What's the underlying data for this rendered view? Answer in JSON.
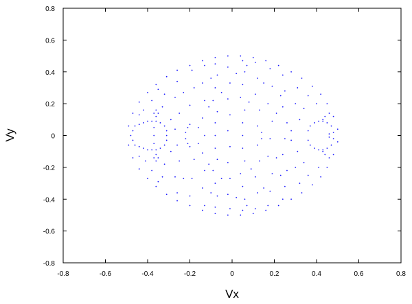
{
  "chart_data": {
    "type": "scatter",
    "xlabel": "Vx",
    "ylabel": "Vy",
    "xlim": [
      -0.8,
      0.8
    ],
    "ylim": [
      -0.8,
      0.8
    ],
    "xticks": [
      -0.8,
      -0.6,
      -0.4,
      -0.2,
      0,
      0.2,
      0.4,
      0.6,
      0.8
    ],
    "yticks": [
      -0.8,
      -0.6,
      -0.4,
      -0.2,
      0,
      0.2,
      0.4,
      0.6,
      0.8
    ],
    "xtick_labels": [
      "-0.8",
      "-0.6",
      "-0.4",
      "-0.2",
      "0",
      "0.2",
      "0.4",
      "0.6",
      "0.8"
    ],
    "ytick_labels": [
      "-0.8",
      "-0.6",
      "-0.4",
      "-0.2",
      "0",
      "0.2",
      "0.4",
      "0.6",
      "0.8"
    ],
    "grid": false,
    "legend": false,
    "colors": {
      "points": "#1a1aff",
      "axes": "#000000",
      "background": "#ffffff"
    },
    "series": [
      {
        "points": [
          [
            -0.49,
            0.06
          ],
          [
            -0.49,
            -0.06
          ],
          [
            -0.47,
            0.14
          ],
          [
            -0.47,
            -0.14
          ],
          [
            -0.44,
            0.21
          ],
          [
            -0.44,
            -0.21
          ],
          [
            -0.4,
            0.27
          ],
          [
            -0.4,
            -0.27
          ],
          [
            -0.36,
            0.32
          ],
          [
            -0.36,
            -0.32
          ],
          [
            -0.31,
            0.37
          ],
          [
            -0.31,
            -0.37
          ],
          [
            -0.26,
            0.41
          ],
          [
            -0.26,
            -0.41
          ],
          [
            -0.2,
            0.44
          ],
          [
            -0.2,
            -0.44
          ],
          [
            -0.14,
            0.47
          ],
          [
            -0.14,
            -0.47
          ],
          [
            -0.08,
            0.49
          ],
          [
            -0.08,
            -0.49
          ],
          [
            -0.02,
            0.5
          ],
          [
            -0.02,
            -0.5
          ],
          [
            0.04,
            0.5
          ],
          [
            0.04,
            -0.5
          ],
          [
            0.1,
            0.49
          ],
          [
            0.1,
            -0.49
          ],
          [
            0.16,
            0.47
          ],
          [
            0.16,
            -0.47
          ],
          [
            0.22,
            0.44
          ],
          [
            0.22,
            -0.44
          ],
          [
            0.28,
            0.4
          ],
          [
            0.28,
            -0.4
          ],
          [
            0.33,
            0.36
          ],
          [
            0.33,
            -0.36
          ],
          [
            0.38,
            0.31
          ],
          [
            0.38,
            -0.31
          ],
          [
            0.42,
            0.26
          ],
          [
            0.42,
            -0.26
          ],
          [
            0.45,
            0.2
          ],
          [
            0.45,
            -0.2
          ],
          [
            0.48,
            0.12
          ],
          [
            0.48,
            -0.12
          ],
          [
            0.5,
            0.04
          ],
          [
            0.5,
            -0.04
          ],
          [
            -0.48,
            0.0
          ],
          [
            -0.47,
            0.03
          ],
          [
            -0.47,
            -0.03
          ],
          [
            -0.46,
            0.06
          ],
          [
            -0.46,
            -0.06
          ],
          [
            -0.44,
            0.07
          ],
          [
            -0.44,
            -0.07
          ],
          [
            -0.42,
            0.08
          ],
          [
            -0.42,
            -0.08
          ],
          [
            -0.4,
            0.09
          ],
          [
            -0.4,
            -0.09
          ],
          [
            -0.38,
            0.09
          ],
          [
            -0.38,
            -0.09
          ],
          [
            -0.36,
            0.09
          ],
          [
            -0.36,
            -0.09
          ],
          [
            -0.34,
            0.08
          ],
          [
            -0.34,
            -0.08
          ],
          [
            -0.32,
            0.06
          ],
          [
            -0.32,
            -0.06
          ],
          [
            -0.31,
            0.03
          ],
          [
            -0.31,
            -0.03
          ],
          [
            -0.31,
            0.0
          ],
          [
            -0.36,
            0.12
          ],
          [
            -0.35,
            0.14
          ],
          [
            -0.37,
            0.14
          ],
          [
            -0.36,
            0.16
          ],
          [
            -0.36,
            -0.12
          ],
          [
            -0.35,
            -0.14
          ],
          [
            -0.37,
            -0.14
          ],
          [
            -0.36,
            -0.16
          ],
          [
            -0.37,
            0.05
          ],
          [
            -0.37,
            -0.05
          ],
          [
            -0.37,
            0.0
          ],
          [
            -0.22,
            0.02
          ],
          [
            -0.21,
            0.05
          ],
          [
            -0.21,
            -0.05
          ],
          [
            -0.2,
            0.07
          ],
          [
            -0.2,
            -0.07
          ],
          [
            -0.22,
            -0.02
          ],
          [
            0.36,
            0.03
          ],
          [
            0.37,
            0.06
          ],
          [
            0.37,
            -0.06
          ],
          [
            0.39,
            0.08
          ],
          [
            0.39,
            -0.08
          ],
          [
            0.41,
            0.09
          ],
          [
            0.41,
            -0.09
          ],
          [
            0.43,
            0.09
          ],
          [
            0.43,
            -0.09
          ],
          [
            0.45,
            0.08
          ],
          [
            0.45,
            -0.08
          ],
          [
            0.47,
            0.06
          ],
          [
            0.47,
            -0.06
          ],
          [
            0.48,
            0.02
          ],
          [
            0.48,
            -0.02
          ],
          [
            0.36,
            -0.03
          ],
          [
            0.43,
            0.1
          ],
          [
            0.44,
            0.12
          ],
          [
            0.43,
            -0.1
          ],
          [
            0.44,
            -0.12
          ],
          [
            0.46,
            0.14
          ],
          [
            0.46,
            -0.14
          ],
          [
            -0.08,
            0.45
          ],
          [
            -0.07,
            0.38
          ],
          [
            -0.08,
            0.3
          ],
          [
            -0.09,
            0.22
          ],
          [
            -0.07,
            0.15
          ],
          [
            -0.08,
            0.08
          ],
          [
            -0.08,
            0.0
          ],
          [
            -0.08,
            -0.08
          ],
          [
            -0.07,
            -0.15
          ],
          [
            -0.09,
            -0.22
          ],
          [
            -0.08,
            -0.3
          ],
          [
            -0.07,
            -0.38
          ],
          [
            -0.08,
            -0.45
          ],
          [
            0.05,
            0.47
          ],
          [
            0.06,
            0.4
          ],
          [
            0.05,
            0.32
          ],
          [
            0.04,
            0.24
          ],
          [
            0.06,
            0.16
          ],
          [
            0.05,
            0.08
          ],
          [
            0.05,
            0.0
          ],
          [
            0.05,
            -0.08
          ],
          [
            0.06,
            -0.16
          ],
          [
            0.04,
            -0.24
          ],
          [
            0.05,
            -0.32
          ],
          [
            0.06,
            -0.4
          ],
          [
            0.05,
            -0.47
          ],
          [
            0.11,
            0.46
          ],
          [
            0.12,
            0.36
          ],
          [
            0.11,
            0.26
          ],
          [
            0.13,
            0.16
          ],
          [
            0.12,
            0.06
          ],
          [
            0.12,
            -0.06
          ],
          [
            0.13,
            -0.16
          ],
          [
            0.11,
            -0.26
          ],
          [
            0.12,
            -0.36
          ],
          [
            0.11,
            -0.46
          ],
          [
            -0.13,
            0.44
          ],
          [
            -0.14,
            0.33
          ],
          [
            -0.13,
            0.22
          ],
          [
            -0.14,
            0.11
          ],
          [
            -0.13,
            0.0
          ],
          [
            -0.14,
            -0.11
          ],
          [
            -0.13,
            -0.22
          ],
          [
            -0.14,
            -0.33
          ],
          [
            -0.13,
            -0.44
          ],
          [
            0.24,
            0.38
          ],
          [
            0.25,
            0.28
          ],
          [
            0.24,
            0.18
          ],
          [
            0.26,
            0.08
          ],
          [
            0.25,
            -0.02
          ],
          [
            0.24,
            -0.12
          ],
          [
            0.26,
            -0.22
          ],
          [
            0.25,
            -0.32
          ],
          [
            0.24,
            -0.4
          ],
          [
            -0.26,
            0.34
          ],
          [
            -0.27,
            0.24
          ],
          [
            -0.25,
            0.14
          ],
          [
            -0.27,
            0.04
          ],
          [
            -0.26,
            -0.06
          ],
          [
            -0.25,
            -0.16
          ],
          [
            -0.27,
            -0.26
          ],
          [
            -0.26,
            -0.36
          ],
          [
            -0.02,
            0.43
          ],
          [
            -0.01,
            0.33
          ],
          [
            -0.02,
            0.23
          ],
          [
            -0.01,
            0.13
          ],
          [
            -0.02,
            0.03
          ],
          [
            -0.01,
            -0.07
          ],
          [
            -0.02,
            -0.17
          ],
          [
            -0.01,
            -0.27
          ],
          [
            -0.02,
            -0.37
          ],
          [
            -0.01,
            -0.46
          ],
          [
            0.18,
            0.42
          ],
          [
            0.19,
            0.31
          ],
          [
            0.17,
            0.2
          ],
          [
            0.19,
            0.09
          ],
          [
            0.18,
            -0.02
          ],
          [
            0.17,
            -0.13
          ],
          [
            0.19,
            -0.24
          ],
          [
            0.18,
            -0.35
          ],
          [
            0.17,
            -0.44
          ],
          [
            -0.19,
            0.41
          ],
          [
            -0.18,
            0.3
          ],
          [
            -0.2,
            0.19
          ],
          [
            -0.18,
            -0.15
          ],
          [
            -0.19,
            -0.27
          ],
          [
            -0.2,
            -0.38
          ],
          [
            0.31,
            0.3
          ],
          [
            0.3,
            0.2
          ],
          [
            0.32,
            0.1
          ],
          [
            0.31,
            -0.1
          ],
          [
            0.3,
            -0.2
          ],
          [
            0.32,
            -0.3
          ],
          [
            -0.32,
            0.26
          ],
          [
            -0.33,
            0.18
          ],
          [
            -0.32,
            -0.18
          ],
          [
            -0.33,
            -0.26
          ],
          [
            -0.42,
            0.16
          ],
          [
            -0.41,
            -0.16
          ],
          [
            0.4,
            0.2
          ],
          [
            0.41,
            -0.2
          ],
          [
            0.36,
            0.25
          ],
          [
            0.36,
            -0.25
          ],
          [
            -0.38,
            0.22
          ],
          [
            -0.38,
            -0.22
          ],
          [
            0.08,
            0.21
          ],
          [
            0.09,
            -0.21
          ],
          [
            -0.05,
            0.27
          ],
          [
            -0.05,
            -0.27
          ],
          [
            0.15,
            0.33
          ],
          [
            0.15,
            -0.33
          ],
          [
            -0.16,
            0.05
          ],
          [
            -0.16,
            -0.05
          ],
          [
            0.21,
            0.14
          ],
          [
            0.21,
            -0.14
          ],
          [
            -0.23,
            0.27
          ],
          [
            -0.23,
            -0.27
          ],
          [
            0.28,
            0.03
          ],
          [
            0.28,
            -0.03
          ],
          [
            0.02,
            0.39
          ],
          [
            0.02,
            -0.39
          ],
          [
            -0.1,
            0.36
          ],
          [
            -0.1,
            -0.36
          ],
          [
            0.34,
            0.17
          ],
          [
            0.34,
            -0.17
          ],
          [
            -0.29,
            0.1
          ],
          [
            -0.29,
            -0.1
          ],
          [
            0.14,
            0.02
          ],
          [
            0.14,
            -0.02
          ],
          [
            -0.44,
            0.13
          ],
          [
            -0.44,
            -0.13
          ],
          [
            0.46,
            0.01
          ],
          [
            0.46,
            -0.01
          ],
          [
            -0.11,
            0.18
          ],
          [
            -0.11,
            -0.18
          ],
          [
            0.23,
            0.25
          ],
          [
            0.23,
            -0.25
          ],
          [
            0.07,
            0.44
          ],
          [
            0.07,
            -0.44
          ],
          [
            -0.35,
            0.29
          ],
          [
            -0.35,
            -0.29
          ]
        ]
      }
    ]
  }
}
